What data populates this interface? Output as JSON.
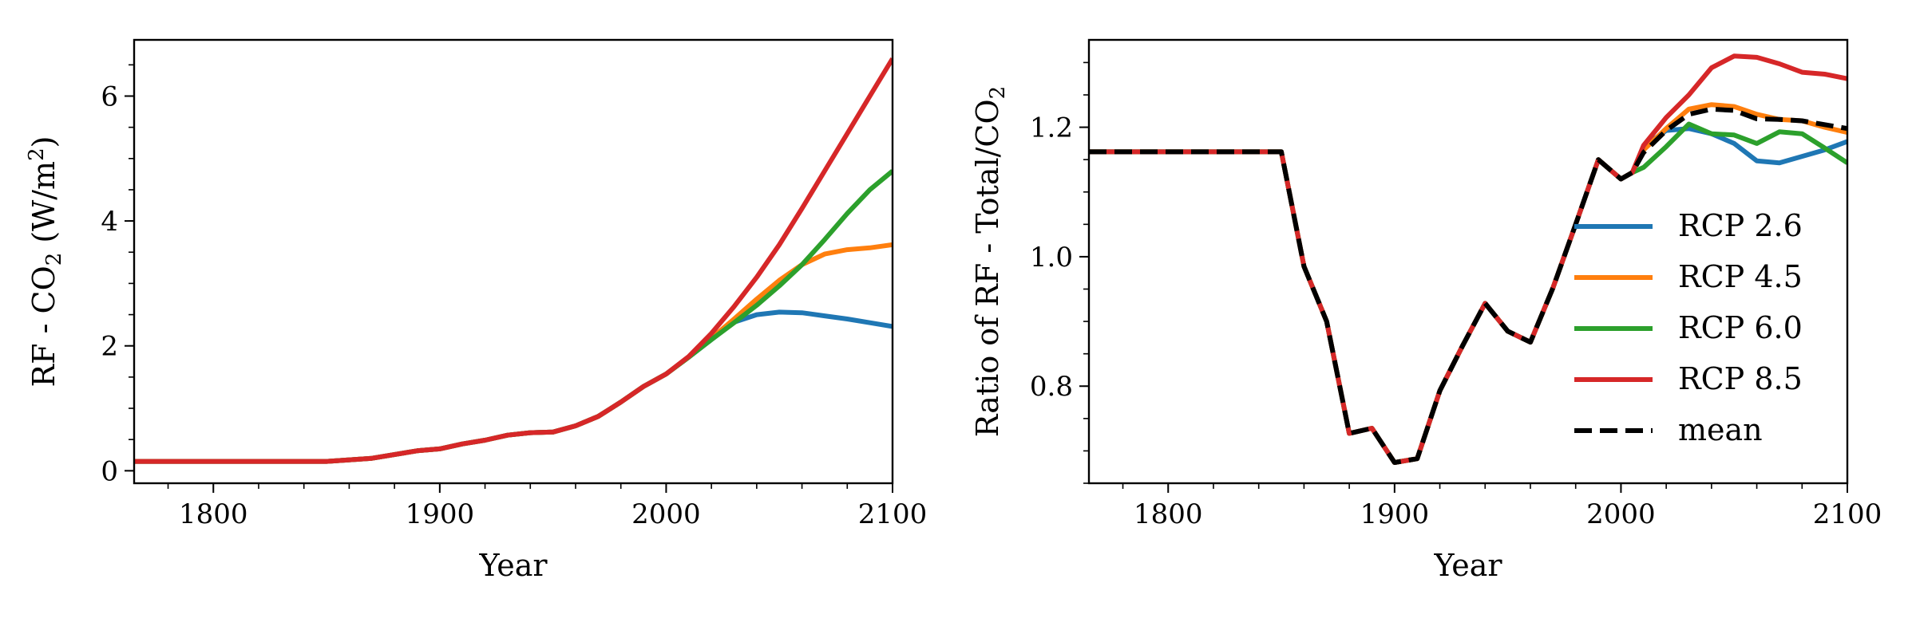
{
  "chart_data": [
    {
      "type": "line",
      "xlabel": "Year",
      "ylabel": {
        "main": "RF - CO",
        "sub": "2",
        "unit_open": " (W/m",
        "sup": "2",
        "unit_close": ")"
      },
      "xlim": [
        1765,
        2100
      ],
      "ylim": [
        -0.2,
        6.9
      ],
      "xticks": [
        1800,
        1900,
        2000,
        2100
      ],
      "yticks": [
        0,
        2,
        4,
        6
      ],
      "x_minor_step": 20,
      "y_minor_step": 0.5,
      "series": [
        {
          "name": "RCP 2.6",
          "color": "#1f77b4",
          "dashed": false,
          "x": [
            1765,
            1850,
            1870,
            1890,
            1900,
            1910,
            1920,
            1930,
            1940,
            1950,
            1960,
            1970,
            1980,
            1990,
            2000,
            2010,
            2020,
            2030,
            2040,
            2050,
            2060,
            2070,
            2080,
            2090,
            2100
          ],
          "y": [
            0.15,
            0.15,
            0.2,
            0.32,
            0.35,
            0.43,
            0.49,
            0.57,
            0.61,
            0.62,
            0.72,
            0.87,
            1.1,
            1.35,
            1.55,
            1.82,
            2.1,
            2.38,
            2.5,
            2.54,
            2.53,
            2.48,
            2.43,
            2.37,
            2.31
          ]
        },
        {
          "name": "RCP 4.5",
          "color": "#ff7f0e",
          "dashed": false,
          "x": [
            1765,
            1850,
            1870,
            1890,
            1900,
            1910,
            1920,
            1930,
            1940,
            1950,
            1960,
            1970,
            1980,
            1990,
            2000,
            2010,
            2020,
            2030,
            2040,
            2050,
            2060,
            2070,
            2080,
            2090,
            2100
          ],
          "y": [
            0.15,
            0.15,
            0.2,
            0.32,
            0.35,
            0.43,
            0.49,
            0.57,
            0.61,
            0.62,
            0.72,
            0.87,
            1.1,
            1.35,
            1.55,
            1.82,
            2.12,
            2.43,
            2.75,
            3.05,
            3.3,
            3.47,
            3.54,
            3.57,
            3.62
          ]
        },
        {
          "name": "RCP 6.0",
          "color": "#2ca02c",
          "dashed": false,
          "x": [
            1765,
            1850,
            1870,
            1890,
            1900,
            1910,
            1920,
            1930,
            1940,
            1950,
            1960,
            1970,
            1980,
            1990,
            2000,
            2010,
            2020,
            2030,
            2040,
            2050,
            2060,
            2070,
            2080,
            2090,
            2100
          ],
          "y": [
            0.15,
            0.15,
            0.2,
            0.32,
            0.35,
            0.43,
            0.49,
            0.57,
            0.61,
            0.62,
            0.72,
            0.87,
            1.1,
            1.35,
            1.55,
            1.82,
            2.1,
            2.37,
            2.65,
            2.96,
            3.3,
            3.7,
            4.12,
            4.5,
            4.8
          ]
        },
        {
          "name": "RCP 8.5",
          "color": "#d62728",
          "dashed": false,
          "x": [
            1765,
            1850,
            1870,
            1890,
            1900,
            1910,
            1920,
            1930,
            1940,
            1950,
            1960,
            1970,
            1980,
            1990,
            2000,
            2010,
            2020,
            2030,
            2040,
            2050,
            2060,
            2070,
            2080,
            2090,
            2100
          ],
          "y": [
            0.15,
            0.15,
            0.2,
            0.32,
            0.35,
            0.43,
            0.49,
            0.57,
            0.61,
            0.62,
            0.72,
            0.87,
            1.1,
            1.35,
            1.55,
            1.83,
            2.2,
            2.63,
            3.1,
            3.62,
            4.2,
            4.8,
            5.4,
            6.0,
            6.6
          ]
        }
      ]
    },
    {
      "type": "line",
      "xlabel": "Year",
      "ylabel": {
        "main": "Ratio of RF - Total/CO",
        "sub": "2",
        "unit_open": "",
        "sup": "",
        "unit_close": ""
      },
      "xlim": [
        1765,
        2100
      ],
      "ylim": [
        0.65,
        1.335
      ],
      "xticks": [
        1800,
        1900,
        2000,
        2100
      ],
      "yticks": [
        0.8,
        1.0,
        1.2
      ],
      "ytick_labels": [
        "0.8",
        "1.0",
        "1.2"
      ],
      "x_minor_step": 20,
      "y_minor_step": 0.05,
      "legend": "lower right",
      "series": [
        {
          "name": "RCP 2.6",
          "color": "#1f77b4",
          "dashed": false,
          "x": [
            1765,
            1850,
            1860,
            1870,
            1880,
            1890,
            1900,
            1910,
            1920,
            1930,
            1940,
            1950,
            1960,
            1970,
            1980,
            1990,
            2000,
            2005,
            2010,
            2020,
            2030,
            2040,
            2050,
            2060,
            2070,
            2080,
            2090,
            2100
          ],
          "y": [
            1.162,
            1.162,
            0.985,
            0.9,
            0.727,
            0.735,
            0.682,
            0.688,
            0.793,
            0.862,
            0.928,
            0.885,
            0.868,
            0.952,
            1.05,
            1.15,
            1.12,
            1.13,
            1.17,
            1.195,
            1.198,
            1.19,
            1.175,
            1.148,
            1.145,
            1.155,
            1.165,
            1.178
          ]
        },
        {
          "name": "RCP 4.5",
          "color": "#ff7f0e",
          "dashed": false,
          "x": [
            1765,
            1850,
            1860,
            1870,
            1880,
            1890,
            1900,
            1910,
            1920,
            1930,
            1940,
            1950,
            1960,
            1970,
            1980,
            1990,
            2000,
            2005,
            2010,
            2020,
            2030,
            2040,
            2050,
            2060,
            2070,
            2080,
            2090,
            2100
          ],
          "y": [
            1.162,
            1.162,
            0.985,
            0.9,
            0.727,
            0.735,
            0.682,
            0.688,
            0.793,
            0.862,
            0.928,
            0.885,
            0.868,
            0.952,
            1.05,
            1.15,
            1.12,
            1.13,
            1.165,
            1.198,
            1.228,
            1.235,
            1.232,
            1.22,
            1.212,
            1.21,
            1.2,
            1.192
          ]
        },
        {
          "name": "RCP 6.0",
          "color": "#2ca02c",
          "dashed": false,
          "x": [
            1765,
            1850,
            1860,
            1870,
            1880,
            1890,
            1900,
            1910,
            1920,
            1930,
            1940,
            1950,
            1960,
            1970,
            1980,
            1990,
            2000,
            2005,
            2010,
            2020,
            2030,
            2040,
            2050,
            2060,
            2070,
            2080,
            2090,
            2100
          ],
          "y": [
            1.162,
            1.162,
            0.985,
            0.9,
            0.727,
            0.735,
            0.682,
            0.688,
            0.793,
            0.862,
            0.928,
            0.885,
            0.868,
            0.952,
            1.05,
            1.15,
            1.12,
            1.13,
            1.138,
            1.17,
            1.205,
            1.19,
            1.188,
            1.175,
            1.193,
            1.19,
            1.168,
            1.145
          ]
        },
        {
          "name": "RCP 8.5",
          "color": "#d62728",
          "dashed": false,
          "x": [
            1765,
            1850,
            1860,
            1870,
            1880,
            1890,
            1900,
            1910,
            1920,
            1930,
            1940,
            1950,
            1960,
            1970,
            1980,
            1990,
            2000,
            2005,
            2010,
            2020,
            2030,
            2040,
            2050,
            2060,
            2070,
            2080,
            2090,
            2100
          ],
          "y": [
            1.162,
            1.162,
            0.985,
            0.9,
            0.727,
            0.735,
            0.682,
            0.688,
            0.793,
            0.862,
            0.928,
            0.885,
            0.868,
            0.952,
            1.05,
            1.15,
            1.12,
            1.13,
            1.172,
            1.215,
            1.25,
            1.292,
            1.31,
            1.308,
            1.298,
            1.285,
            1.282,
            1.275
          ]
        },
        {
          "name": "mean",
          "color": "#000000",
          "dashed": true,
          "x": [
            1765,
            1850,
            1860,
            1870,
            1880,
            1890,
            1900,
            1910,
            1920,
            1930,
            1940,
            1950,
            1960,
            1970,
            1980,
            1990,
            2000,
            2005,
            2010,
            2020,
            2030,
            2040,
            2050,
            2060,
            2070,
            2080,
            2090,
            2100
          ],
          "y": [
            1.162,
            1.162,
            0.985,
            0.9,
            0.727,
            0.735,
            0.682,
            0.688,
            0.793,
            0.862,
            0.928,
            0.885,
            0.868,
            0.952,
            1.05,
            1.15,
            1.12,
            1.13,
            1.161,
            1.195,
            1.22,
            1.228,
            1.226,
            1.213,
            1.212,
            1.21,
            1.204,
            1.198
          ]
        }
      ]
    }
  ]
}
